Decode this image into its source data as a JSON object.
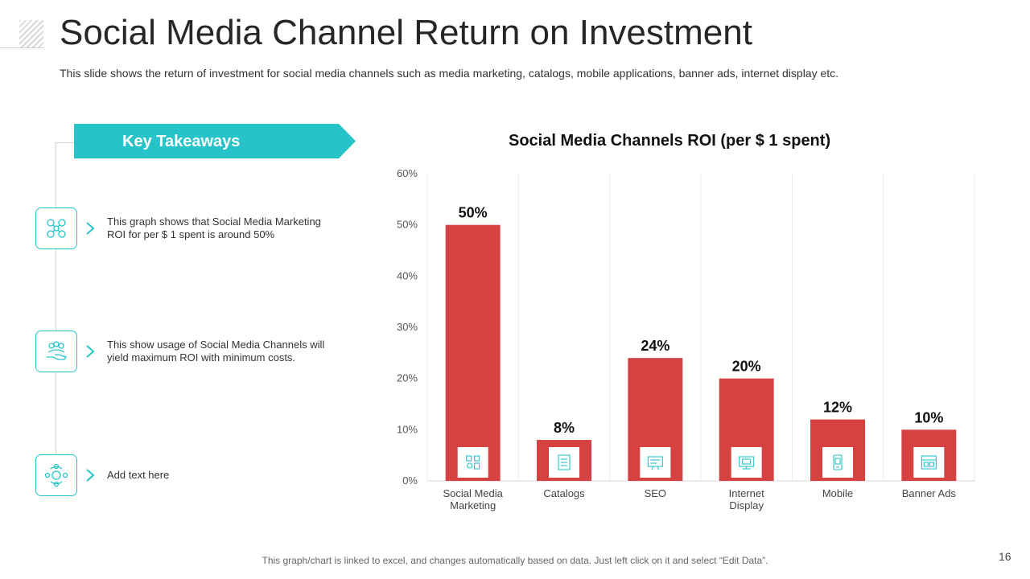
{
  "header": {
    "title": "Social Media Channel Return on Investment",
    "subtitle": "This slide shows the return of investment for social media  channels such as media marketing, catalogs, mobile applications, banner ads, internet display etc."
  },
  "takeaways": {
    "heading": "Key Takeaways",
    "items": [
      {
        "icon": "network-people-icon",
        "text": "This graph shows that Social Media Marketing ROI for per $ 1 spent is around 50%"
      },
      {
        "icon": "hand-people-icon",
        "text": "This show usage of Social Media Channels will yield maximum ROI with minimum costs."
      },
      {
        "icon": "connected-users-icon",
        "text": "Add text here"
      }
    ]
  },
  "chart_data": {
    "type": "bar",
    "title": "Social Media Channels ROI (per $ 1 spent)",
    "categories": [
      "Social Media Marketing",
      "Catalogs",
      "SEO",
      "Internet Display",
      "Mobile",
      "Banner Ads"
    ],
    "values": [
      50,
      8,
      24,
      20,
      12,
      10
    ],
    "value_labels": [
      "50%",
      "8%",
      "24%",
      "20%",
      "12%",
      "10%"
    ],
    "ylim": [
      0,
      60
    ],
    "yticks": [
      "0%",
      "10%",
      "20%",
      "30%",
      "40%",
      "50%",
      "60%"
    ],
    "bar_icons": [
      "social-media-icon",
      "catalog-icon",
      "seo-icon",
      "display-icon",
      "mobile-icon",
      "banner-icon"
    ],
    "grid": "vertical"
  },
  "colors": {
    "accent": "#26c4c8",
    "bar": "#d64242"
  },
  "footer": {
    "note": "This graph/chart is linked to excel, and changes automatically based on data. Just left click on it and select “Edit Data”.",
    "page_number": "16"
  }
}
